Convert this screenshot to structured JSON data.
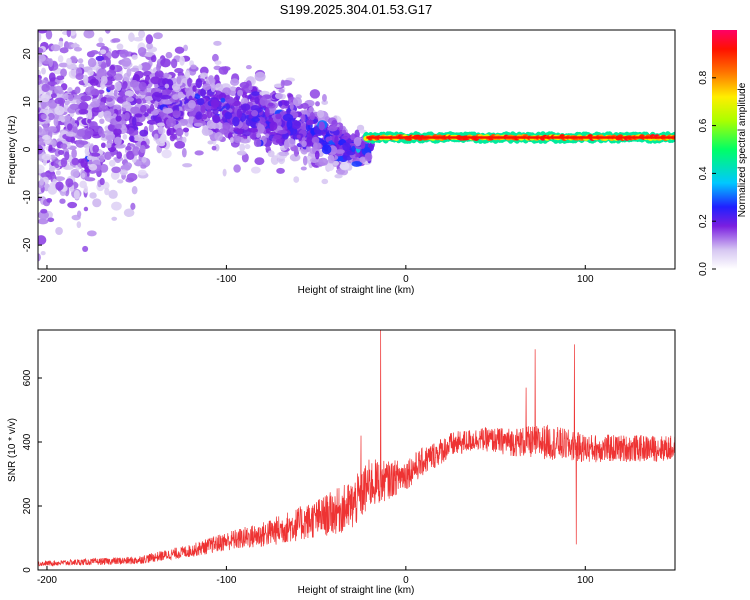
{
  "title": "S199.2025.304.01.53.G17",
  "chart_data": [
    {
      "type": "heatmap",
      "title": "S199.2025.304.01.53.G17",
      "xlabel": "Height of straight line (km)",
      "ylabel": "Frequency (Hz)",
      "xlim": [
        -205,
        150
      ],
      "ylim": [
        -25,
        25
      ],
      "xticks": [
        -200,
        -100,
        0,
        100
      ],
      "yticks": [
        -20,
        -10,
        0,
        10,
        20
      ],
      "colorbar": {
        "label": "Normalized spectral amplitude",
        "range": [
          0,
          1
        ],
        "ticks": [
          "0.0",
          "0.2",
          "0.4",
          "0.6",
          "0.8"
        ]
      },
      "ridge": {
        "description": "narrow high-amplitude line",
        "x_range": [
          -22,
          150
        ],
        "frequency": 2.5
      },
      "scatter_trend": [
        {
          "x": -200,
          "freq_center": 5,
          "spread": 20
        },
        {
          "x": -150,
          "freq_center": 8,
          "spread": 14
        },
        {
          "x": -130,
          "freq_center": 10,
          "spread": 8
        },
        {
          "x": -100,
          "freq_center": 8,
          "spread": 7
        },
        {
          "x": -70,
          "freq_center": 6,
          "spread": 7
        },
        {
          "x": -50,
          "freq_center": 3,
          "spread": 6
        },
        {
          "x": -30,
          "freq_center": 0,
          "spread": 3
        }
      ]
    },
    {
      "type": "line",
      "xlabel": "Height of straight line (km)",
      "ylabel": "SNR (10 * v/v)",
      "xlim": [
        -205,
        150
      ],
      "ylim": [
        0,
        750
      ],
      "xticks": [
        -200,
        -100,
        0,
        100
      ],
      "yticks": [
        0,
        200,
        400,
        600
      ],
      "color": "#ee3333",
      "envelope": [
        {
          "x": -205,
          "base": 20,
          "noise": 15
        },
        {
          "x": -150,
          "base": 30,
          "noise": 25
        },
        {
          "x": -120,
          "base": 60,
          "noise": 40
        },
        {
          "x": -100,
          "base": 90,
          "noise": 60
        },
        {
          "x": -80,
          "base": 110,
          "noise": 80
        },
        {
          "x": -50,
          "base": 160,
          "noise": 120
        },
        {
          "x": -30,
          "base": 200,
          "noise": 160
        },
        {
          "x": -20,
          "base": 270,
          "noise": 160
        },
        {
          "x": -10,
          "base": 280,
          "noise": 120
        },
        {
          "x": 0,
          "base": 300,
          "noise": 100
        },
        {
          "x": 10,
          "base": 340,
          "noise": 90
        },
        {
          "x": 25,
          "base": 390,
          "noise": 80
        },
        {
          "x": 40,
          "base": 410,
          "noise": 70
        },
        {
          "x": 60,
          "base": 400,
          "noise": 90
        },
        {
          "x": 80,
          "base": 400,
          "noise": 110
        },
        {
          "x": 100,
          "base": 380,
          "noise": 90
        },
        {
          "x": 150,
          "base": 380,
          "noise": 80
        }
      ],
      "spikes": [
        {
          "x": -14,
          "y": 750
        },
        {
          "x": 72,
          "y": 690
        },
        {
          "x": 94,
          "y": 705
        },
        {
          "x": 95,
          "y": 80
        },
        {
          "x": 67,
          "y": 570
        },
        {
          "x": -25,
          "y": 420
        }
      ]
    }
  ]
}
